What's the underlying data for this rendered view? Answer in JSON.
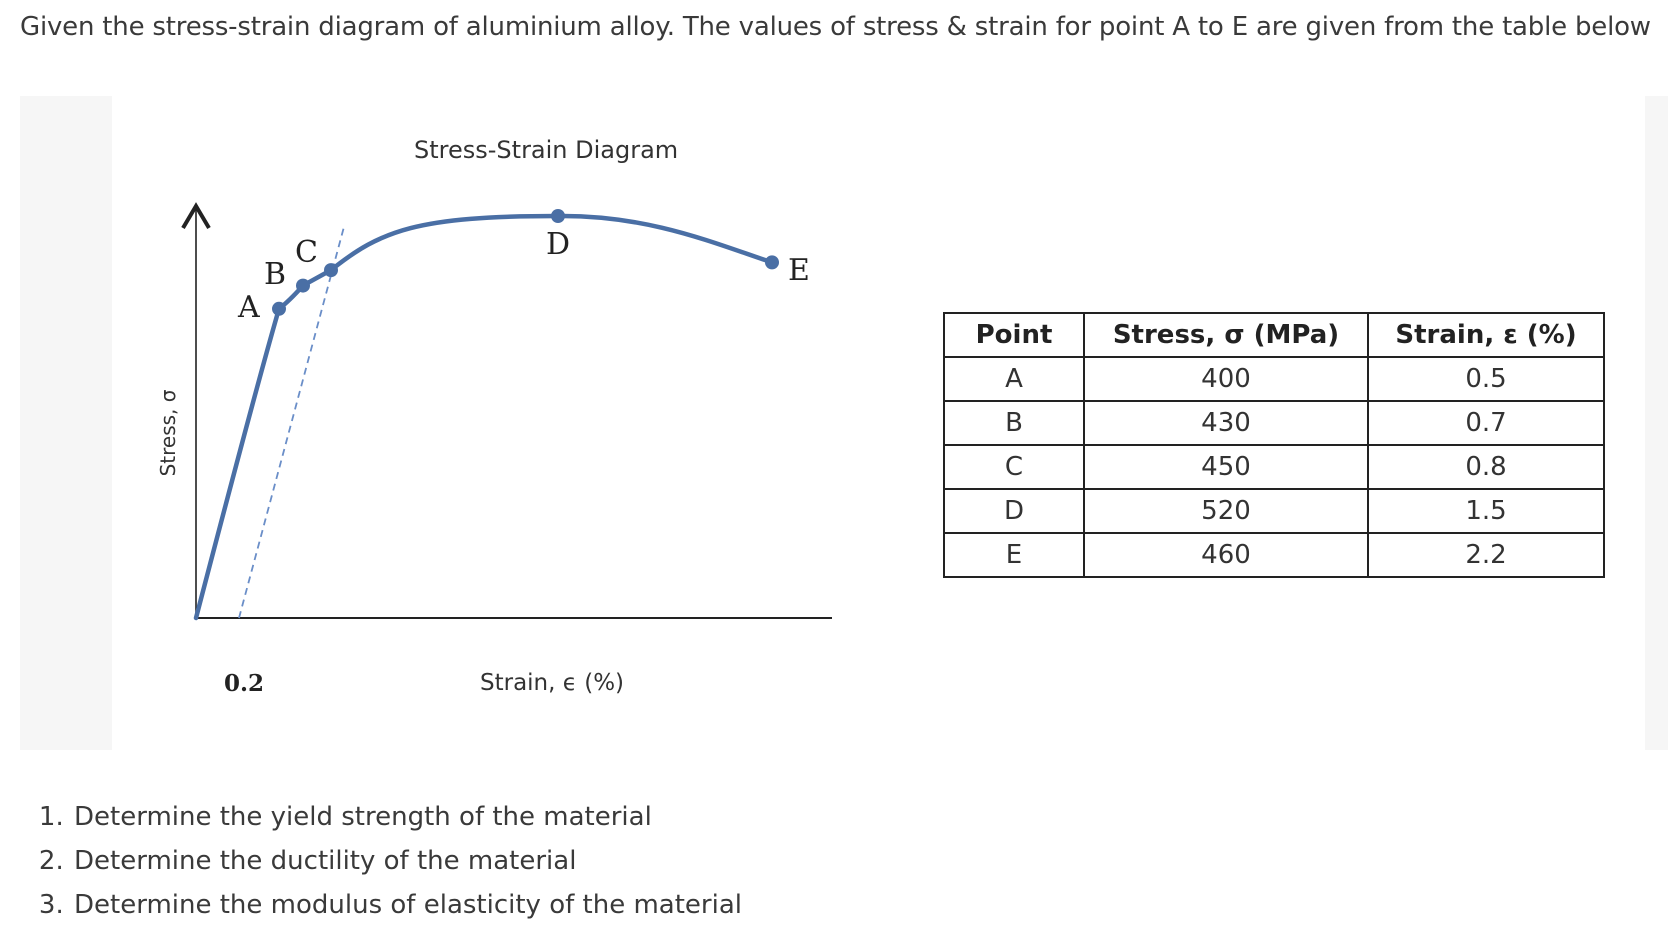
{
  "intro_text": "Given the stress-strain diagram of aluminium alloy. The values of stress & strain for point A to E are given from the table below",
  "chart_data": {
    "type": "line",
    "title": "Stress-Strain Diagram",
    "xlabel": "Strain, ϵ (%)",
    "ylabel": "Stress, σ",
    "x_tick_labels": [
      "0.2"
    ],
    "offset_line": "dashed",
    "series": [
      {
        "x": [
          0,
          0.5,
          0.7,
          0.8,
          1.5,
          2.2
        ],
        "y": [
          0,
          400,
          430,
          450,
          520,
          460
        ],
        "labels": [
          "",
          "A",
          "B",
          "C",
          "D",
          "E"
        ]
      }
    ],
    "colors": {
      "curve": "#4a6fa5",
      "axis": "#222222",
      "offset_line": "#6a8ec8"
    }
  },
  "table": {
    "headers": [
      "Point",
      "Stress, σ (MPa)",
      "Strain, ε (%)"
    ],
    "rows": [
      [
        "A",
        "400",
        "0.5"
      ],
      [
        "B",
        "430",
        "0.7"
      ],
      [
        "C",
        "450",
        "0.8"
      ],
      [
        "D",
        "520",
        "1.5"
      ],
      [
        "E",
        "460",
        "2.2"
      ]
    ]
  },
  "questions": [
    "Determine the yield strength of the material",
    "Determine the ductility of the material",
    "Determine the modulus of elasticity of the material"
  ]
}
